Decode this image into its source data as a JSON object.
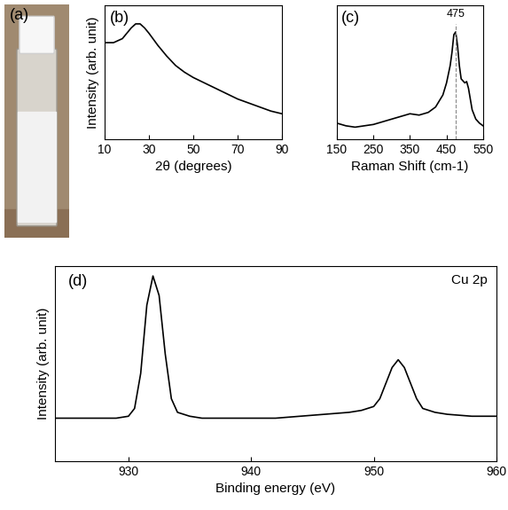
{
  "chart_data": [
    {
      "type": "image",
      "title": "(a)"
    },
    {
      "type": "line",
      "title": "(b)",
      "x_label": "2θ (degrees)",
      "y_label": "Intensity (arb. unit)",
      "x": [
        10,
        14,
        18,
        22,
        24,
        26,
        28,
        30,
        34,
        38,
        42,
        46,
        50,
        55,
        60,
        65,
        70,
        75,
        80,
        85,
        90
      ],
      "values": [
        0.72,
        0.72,
        0.75,
        0.83,
        0.86,
        0.86,
        0.83,
        0.79,
        0.7,
        0.62,
        0.55,
        0.5,
        0.46,
        0.42,
        0.38,
        0.34,
        0.3,
        0.27,
        0.24,
        0.21,
        0.19
      ],
      "color": "#000000",
      "xlim": [
        10,
        90
      ],
      "xticks": [
        10,
        30,
        50,
        70,
        90
      ],
      "ylim": [
        0,
        1
      ],
      "tick_labels": "x"
    },
    {
      "type": "line",
      "title": "(c)",
      "x_label": "Raman Shift (cm-1)",
      "x": [
        150,
        175,
        200,
        225,
        250,
        275,
        300,
        325,
        350,
        375,
        400,
        420,
        440,
        450,
        460,
        465,
        470,
        475,
        480,
        485,
        490,
        500,
        505,
        510,
        520,
        530,
        540,
        550
      ],
      "values": [
        0.12,
        0.1,
        0.09,
        0.1,
        0.11,
        0.13,
        0.15,
        0.17,
        0.19,
        0.18,
        0.2,
        0.24,
        0.33,
        0.42,
        0.55,
        0.65,
        0.78,
        0.8,
        0.7,
        0.55,
        0.45,
        0.42,
        0.43,
        0.38,
        0.22,
        0.15,
        0.12,
        0.1
      ],
      "color": "#000000",
      "xlim": [
        150,
        550
      ],
      "xticks": [
        150,
        250,
        350,
        450,
        550
      ],
      "ylim": [
        0,
        1
      ],
      "tick_labels": "x",
      "annotations": [
        {
          "text": "475",
          "x": 475
        }
      ]
    },
    {
      "type": "line",
      "title": "(d)",
      "x_label": "Binding energy (eV)",
      "y_label": "Intensity (arb. unit)",
      "x": [
        924,
        926,
        928,
        929,
        930,
        930.5,
        931,
        931.5,
        932,
        932.5,
        933,
        933.5,
        934,
        935,
        936,
        938,
        940,
        942,
        944,
        946,
        948,
        949,
        950,
        950.5,
        951,
        951.5,
        952,
        952.5,
        953,
        953.5,
        954,
        955,
        956,
        958,
        960
      ],
      "values": [
        0.22,
        0.22,
        0.22,
        0.22,
        0.23,
        0.27,
        0.45,
        0.8,
        0.95,
        0.85,
        0.55,
        0.32,
        0.25,
        0.23,
        0.22,
        0.22,
        0.22,
        0.22,
        0.23,
        0.24,
        0.25,
        0.26,
        0.28,
        0.32,
        0.4,
        0.48,
        0.52,
        0.48,
        0.4,
        0.32,
        0.27,
        0.25,
        0.24,
        0.23,
        0.23
      ],
      "color": "#000000",
      "xlim": [
        924,
        960
      ],
      "xticks": [
        930,
        940,
        950,
        960
      ],
      "ylim": [
        0,
        1
      ],
      "tick_labels": "x",
      "annotations": [
        {
          "text": "Cu 2p"
        }
      ]
    }
  ]
}
